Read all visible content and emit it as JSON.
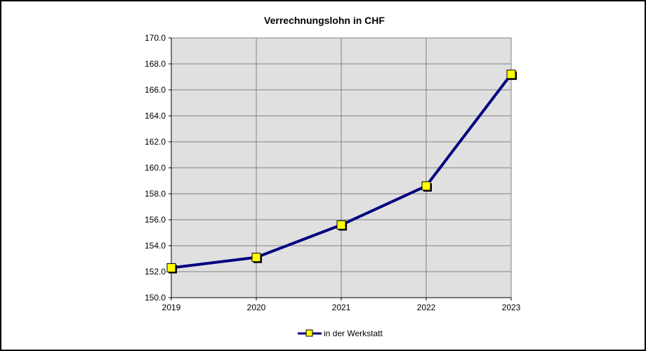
{
  "chart_data": {
    "type": "line",
    "title": "Verrechnungslohn in CHF",
    "xlabel": "",
    "ylabel": "",
    "x": [
      "2019",
      "2020",
      "2021",
      "2022",
      "2023"
    ],
    "series": [
      {
        "name": "in der Werkstatt",
        "values": [
          152.3,
          153.1,
          155.6,
          158.6,
          167.2
        ]
      }
    ],
    "ylim": [
      150.0,
      170.0
    ],
    "y_ticks": [
      "150.0",
      "152.0",
      "154.0",
      "156.0",
      "158.0",
      "160.0",
      "162.0",
      "164.0",
      "166.0",
      "168.0",
      "170.0"
    ],
    "grid": true,
    "legend_position": "bottom",
    "colors": {
      "line": "#000080",
      "marker_fill": "#ffff00",
      "marker_edge": "#000000",
      "plot_background": "#e0e0e0",
      "grid": "#808080"
    }
  }
}
